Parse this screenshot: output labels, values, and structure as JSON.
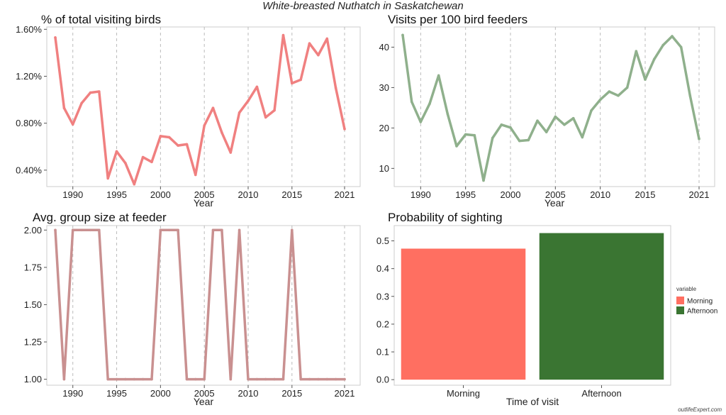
{
  "title": "White-breasted Nuthatch in Saskatchewan",
  "watermark": "outlifeExpert.com",
  "chart_data": [
    {
      "type": "line",
      "title": "% of total visiting birds",
      "xlabel": "Year",
      "ylabel": "",
      "color": "#F08080",
      "xlim": [
        1988,
        2021
      ],
      "ylim": [
        0.0026,
        0.0162
      ],
      "xticks": [
        1990,
        1995,
        2000,
        2005,
        2010,
        2015,
        2021
      ],
      "yticks": [
        0.004,
        0.008,
        0.012,
        0.016
      ],
      "ytick_labels": [
        "0.40%",
        "0.80%",
        "1.20%",
        "1.60%"
      ],
      "x": [
        1988,
        1989,
        1990,
        1991,
        1992,
        1993,
        1994,
        1995,
        1996,
        1997,
        1998,
        1999,
        2000,
        2001,
        2002,
        2003,
        2004,
        2005,
        2006,
        2007,
        2008,
        2009,
        2010,
        2011,
        2012,
        2013,
        2014,
        2015,
        2016,
        2017,
        2018,
        2019,
        2020,
        2021
      ],
      "values": [
        0.0153,
        0.0093,
        0.0079,
        0.0097,
        0.0106,
        0.0107,
        0.0033,
        0.0056,
        0.0046,
        0.0028,
        0.0051,
        0.0047,
        0.0069,
        0.0068,
        0.0061,
        0.0062,
        0.0036,
        0.0078,
        0.0093,
        0.0072,
        0.0055,
        0.0089,
        0.0099,
        0.0111,
        0.0085,
        0.0091,
        0.0155,
        0.0114,
        0.0117,
        0.0148,
        0.0138,
        0.0152,
        0.011,
        0.0075
      ]
    },
    {
      "type": "line",
      "title": "Visits per 100 bird feeders",
      "xlabel": "Year",
      "ylabel": "",
      "color": "#8FB08C",
      "xlim": [
        1988,
        2021
      ],
      "ylim": [
        5.5,
        45
      ],
      "xticks": [
        1990,
        1995,
        2000,
        2005,
        2010,
        2015,
        2021
      ],
      "yticks": [
        10,
        20,
        30,
        40
      ],
      "ytick_labels": [
        "10",
        "20",
        "30",
        "40"
      ],
      "x": [
        1988,
        1989,
        1990,
        1991,
        1992,
        1993,
        1994,
        1995,
        1996,
        1997,
        1998,
        1999,
        2000,
        2001,
        2002,
        2003,
        2004,
        2005,
        2006,
        2007,
        2008,
        2009,
        2010,
        2011,
        2012,
        2013,
        2014,
        2015,
        2016,
        2017,
        2018,
        2019,
        2020,
        2021
      ],
      "values": [
        43,
        26.5,
        21.5,
        26,
        33,
        23.5,
        15.5,
        18.4,
        18.2,
        7,
        17.5,
        20.8,
        20.1,
        16.8,
        17,
        21.8,
        19,
        22.8,
        20.8,
        22.4,
        17.7,
        24.3,
        27,
        29,
        28,
        30,
        39,
        32,
        37,
        40.5,
        42.7,
        40,
        28,
        17.3
      ]
    },
    {
      "type": "line",
      "title": "Avg. group size at feeder",
      "xlabel": "Year",
      "ylabel": "",
      "color": "#C99090",
      "xlim": [
        1988,
        2021
      ],
      "ylim": [
        0.96,
        2.03
      ],
      "xticks": [
        1990,
        1995,
        2000,
        2005,
        2010,
        2015,
        2021
      ],
      "yticks": [
        1.0,
        1.25,
        1.5,
        1.75,
        2.0
      ],
      "ytick_labels": [
        "1.00",
        "1.25",
        "1.50",
        "1.75",
        "2.00"
      ],
      "x": [
        1988,
        1989,
        1990,
        1991,
        1992,
        1993,
        1994,
        1995,
        1996,
        1997,
        1998,
        1999,
        2000,
        2001,
        2002,
        2003,
        2004,
        2005,
        2006,
        2007,
        2008,
        2009,
        2010,
        2011,
        2012,
        2013,
        2014,
        2015,
        2016,
        2017,
        2018,
        2019,
        2020,
        2021
      ],
      "values": [
        2,
        1,
        2,
        2,
        2,
        2,
        1,
        1,
        1,
        1,
        1,
        1,
        2,
        2,
        2,
        1,
        1,
        1,
        2,
        2,
        1,
        2,
        1,
        1,
        1,
        1,
        1,
        2,
        1,
        1,
        1,
        1,
        1,
        1
      ]
    },
    {
      "type": "bar",
      "title": "Probability of sighting",
      "xlabel": "Time of visit",
      "ylabel": "",
      "categories": [
        "Morning",
        "Afternoon"
      ],
      "values": [
        0.472,
        0.528
      ],
      "colors": [
        "#FF6F61",
        "#3A7532"
      ],
      "ylim": [
        -0.02,
        0.555
      ],
      "yticks": [
        0.0,
        0.1,
        0.2,
        0.3,
        0.4,
        0.5
      ],
      "ytick_labels": [
        "0.0",
        "0.1",
        "0.2",
        "0.3",
        "0.4",
        "0.5"
      ],
      "legend": {
        "title": "variable",
        "position": "right",
        "entries": [
          "Morning",
          "Afternoon"
        ]
      }
    }
  ]
}
